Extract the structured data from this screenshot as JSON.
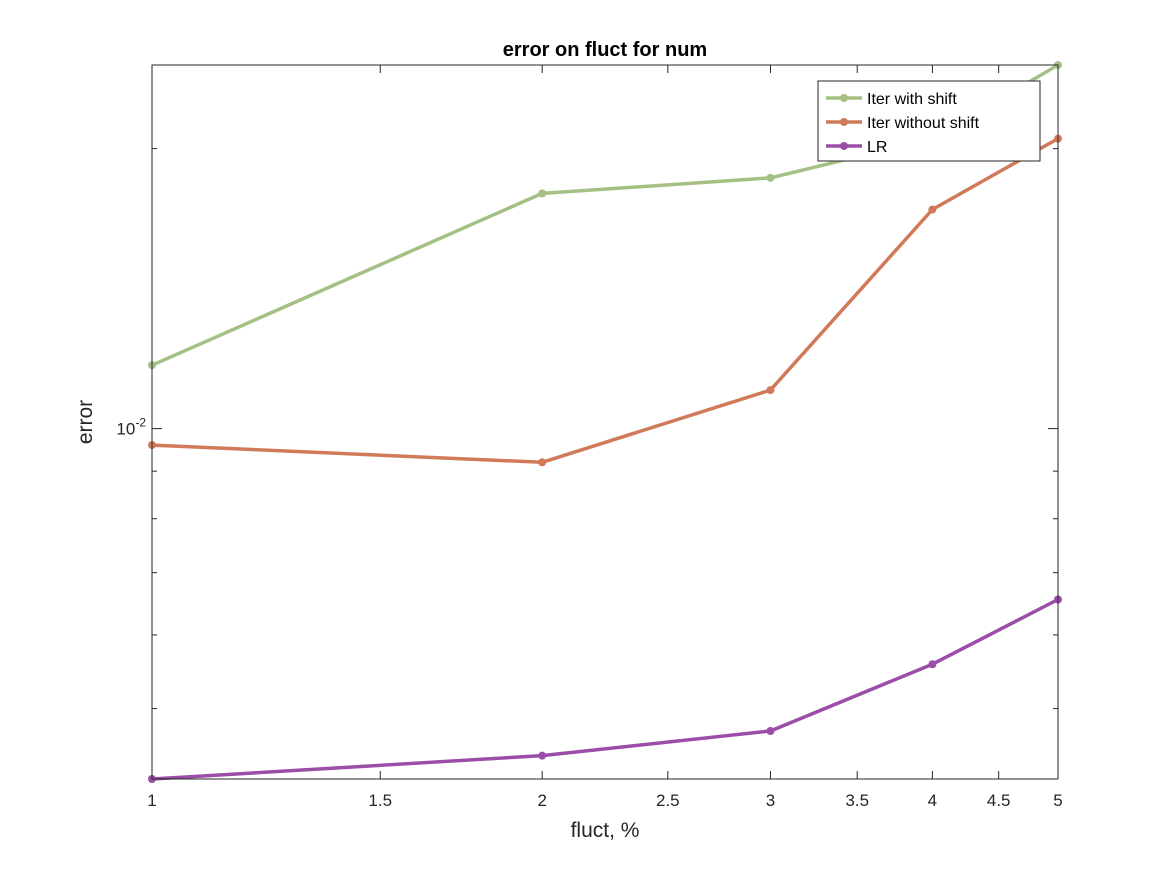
{
  "chart_data": {
    "type": "line",
    "title": "error on fluct for num",
    "xlabel": "fluct, %",
    "ylabel": "error",
    "xscale": "log",
    "yscale": "log",
    "xlim": [
      1,
      5
    ],
    "ylim": [
      0.0042,
      0.0246
    ],
    "x_ticks": [
      1,
      1.5,
      2,
      2.5,
      3,
      3.5,
      4,
      4.5,
      5
    ],
    "x_tick_labels": [
      "1",
      "1.5",
      "2",
      "2.5",
      "3",
      "3.5",
      "4",
      "4.5",
      "5"
    ],
    "y_tick_labels": [
      {
        "value": 0.01,
        "base": "10",
        "exp": "-2"
      }
    ],
    "grid": false,
    "legend_position": "top-right",
    "x": [
      1,
      2,
      3,
      4,
      5
    ],
    "series": [
      {
        "name": "Iter with shift",
        "color": "#a5c084",
        "values": [
          0.0117,
          0.0179,
          0.0186,
          0.0205,
          0.0246
        ]
      },
      {
        "name": "Iter without shift",
        "color": "#d17a5a",
        "values": [
          0.0096,
          0.0092,
          0.011,
          0.0172,
          0.0205
        ]
      },
      {
        "name": "LR",
        "color": "#9b4ea7",
        "values": [
          0.0042,
          0.00445,
          0.00473,
          0.00558,
          0.00655
        ]
      }
    ]
  }
}
